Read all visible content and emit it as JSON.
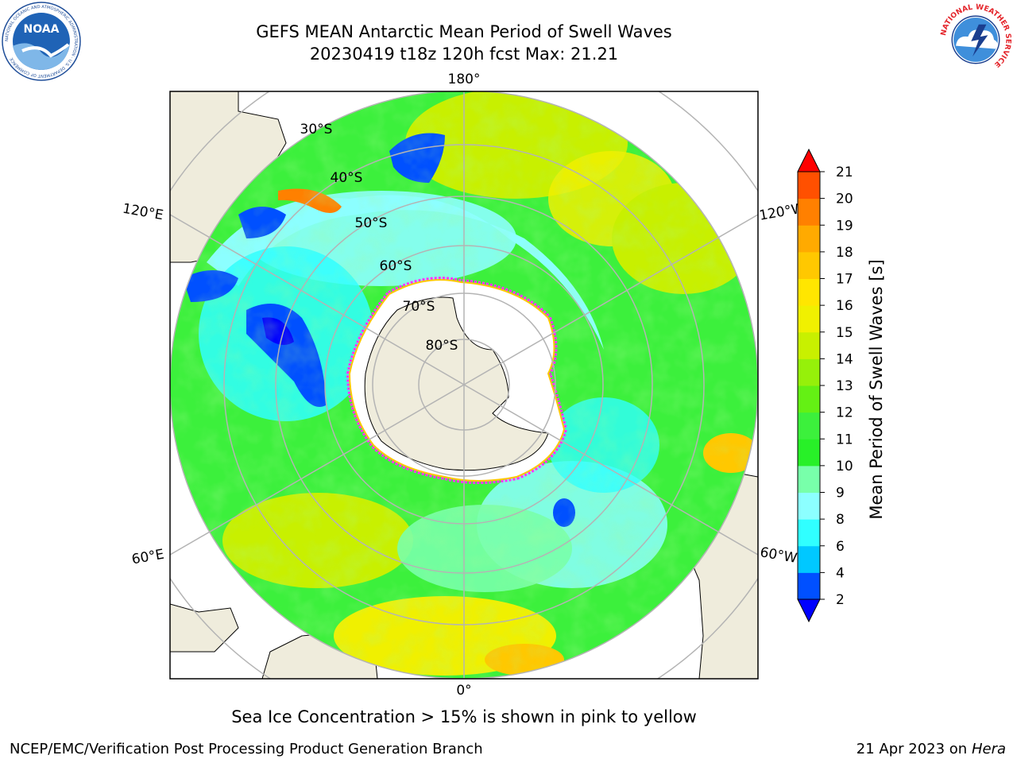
{
  "header": {
    "title": "GEFS MEAN Antarctic Mean Period of Swell Waves",
    "subtitle": "20230419 t18z 120h fcst   Max: 21.21"
  },
  "logos": {
    "noaa_text": "NOAA",
    "noaa_ring": "NATIONAL OCEANIC AND ATMOSPHERIC ADMINISTRATION · U.S. DEPARTMENT OF COMMERCE",
    "nws_ring": "NATIONAL WEATHER SERVICE"
  },
  "map": {
    "longitude_labels": {
      "top": "180°",
      "bottom": "0°",
      "upper_left": "120°E",
      "upper_right": "120°W",
      "lower_left": "60°E",
      "lower_right": "60°W"
    },
    "latitude_labels": [
      "30°S",
      "40°S",
      "50°S",
      "60°S",
      "70°S",
      "80°S"
    ],
    "colors": {
      "land": "#efecdc",
      "ice": "#ffffff",
      "ice_edge": "#ff33ff",
      "grid": "#b4b4b4"
    }
  },
  "colorbar": {
    "label": "Mean Period of Swell Waves [s]",
    "ticks": [
      "2",
      "4",
      "6",
      "8",
      "9",
      "10",
      "11",
      "12",
      "13",
      "14",
      "15",
      "16",
      "17",
      "18",
      "19",
      "20",
      "21"
    ],
    "colors": [
      "#0050ff",
      "#00c8ff",
      "#30ffff",
      "#8cffff",
      "#78ffaa",
      "#28f028",
      "#3cf03c",
      "#64f014",
      "#96f00a",
      "#c8f000",
      "#f0f000",
      "#ffe600",
      "#ffc800",
      "#ffaa00",
      "#ff8000",
      "#ff5000",
      "#ff2800"
    ],
    "under_color": "#0000ff",
    "over_color": "#ff0000"
  },
  "footer": {
    "note": "Sea Ice Concentration > 15% is shown in pink to yellow",
    "credit": "NCEP/EMC/Verification Post Processing Product Generation Branch",
    "date": "21 Apr 2023 on",
    "machine": "Hera"
  }
}
